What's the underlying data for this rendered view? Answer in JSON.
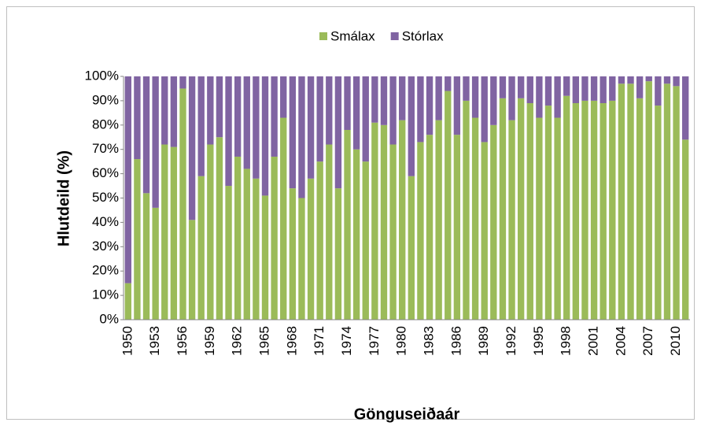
{
  "chart_data": {
    "type": "stacked_bar",
    "y_label": "Hlutdeild (%)",
    "x_label": "Gönguseiðaár",
    "legend": "top",
    "categories": [
      "1950",
      null,
      null,
      "1953",
      null,
      null,
      "1956",
      null,
      null,
      "1959",
      null,
      null,
      "1962",
      null,
      null,
      "1965",
      null,
      null,
      "1968",
      null,
      null,
      "1971",
      null,
      null,
      "1974",
      null,
      null,
      "1977",
      null,
      null,
      "1980",
      null,
      null,
      "1983",
      null,
      null,
      "1986",
      null,
      null,
      "1989",
      null,
      null,
      "1992",
      null,
      null,
      "1995",
      null,
      null,
      "1998",
      null,
      null,
      "2001",
      null,
      null,
      "2004",
      null,
      null,
      "2007",
      null,
      null,
      "2010",
      null
    ],
    "series": [
      {
        "name": "Smálax",
        "color": "#9bbb59",
        "values": [
          15,
          66,
          52,
          46,
          72,
          71,
          95,
          41,
          59,
          72,
          75,
          55,
          67,
          62,
          58,
          51,
          67,
          83,
          54,
          50,
          58,
          65,
          72,
          54,
          78,
          70,
          65,
          81,
          80,
          72,
          82,
          59,
          73,
          76,
          82,
          94,
          76,
          90,
          83,
          73,
          80,
          91,
          82,
          91,
          89,
          83,
          88,
          83,
          92,
          89,
          90,
          90,
          89,
          90,
          97,
          97,
          91,
          98,
          88,
          97,
          96,
          74
        ]
      },
      {
        "name": "Stórlax",
        "color": "#8064a2",
        "values": [
          85,
          34,
          48,
          54,
          28,
          29,
          5,
          59,
          41,
          28,
          25,
          45,
          33,
          38,
          42,
          49,
          33,
          17,
          46,
          50,
          42,
          35,
          28,
          46,
          22,
          30,
          35,
          19,
          20,
          28,
          18,
          41,
          27,
          24,
          18,
          6,
          24,
          10,
          17,
          27,
          20,
          9,
          18,
          9,
          11,
          17,
          12,
          17,
          8,
          11,
          10,
          10,
          11,
          10,
          3,
          3,
          9,
          2,
          12,
          3,
          4,
          26
        ]
      }
    ],
    "ylim": [
      0,
      100
    ],
    "yticks": [
      {
        "value": 0,
        "label": "0%"
      },
      {
        "value": 10,
        "label": "10%"
      },
      {
        "value": 20,
        "label": "20%"
      },
      {
        "value": 30,
        "label": "30%"
      },
      {
        "value": 40,
        "label": "40%"
      },
      {
        "value": 50,
        "label": "50%"
      },
      {
        "value": 60,
        "label": "60%"
      },
      {
        "value": 70,
        "label": "70%"
      },
      {
        "value": 80,
        "label": "80%"
      },
      {
        "value": 90,
        "label": "90%"
      },
      {
        "value": 100,
        "label": "100%"
      }
    ]
  }
}
